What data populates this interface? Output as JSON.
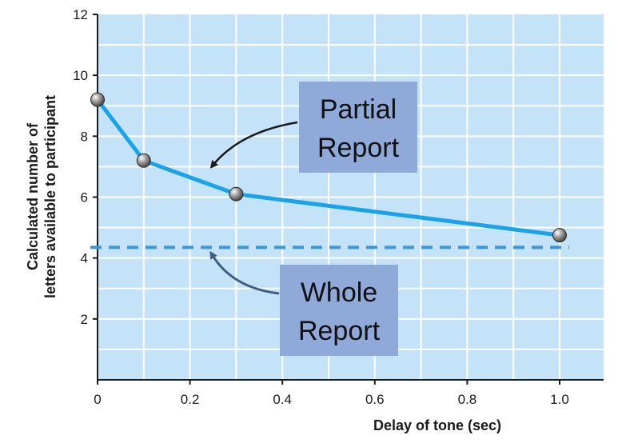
{
  "chart_data": {
    "type": "line",
    "x_ticks": [
      "0",
      "0.2",
      "0.4",
      "0.6",
      "0.8",
      "1.0"
    ],
    "y_ticks": [
      "2",
      "4",
      "6",
      "8",
      "10",
      "12"
    ],
    "xlim": [
      0,
      1.1
    ],
    "ylim": [
      0,
      12
    ],
    "xlabel": "Delay of tone (sec)",
    "ylabel_lines": [
      "Calculated number of",
      "letters available to participant"
    ],
    "grid": true,
    "series": [
      {
        "x": [
          0,
          0.1,
          0.3,
          1.0
        ],
        "y": [
          9.2,
          7.2,
          6.1,
          4.75
        ],
        "color": "#1aa3e8"
      }
    ],
    "reference_line": {
      "y": 4.35,
      "color": "#3a97dd",
      "style": "dashed"
    },
    "annotations": [
      {
        "id": "partial",
        "lines": [
          "Partial",
          "Report"
        ],
        "box_color": "#8fa9d9",
        "arrow_color": "#1a1a1a"
      },
      {
        "id": "whole",
        "lines": [
          "Whole",
          "Report"
        ],
        "box_color": "#8fa9d9",
        "arrow_color": "#3d5f86"
      }
    ],
    "plot_background": "#c4e3f8",
    "grid_color": "#ffffff"
  }
}
